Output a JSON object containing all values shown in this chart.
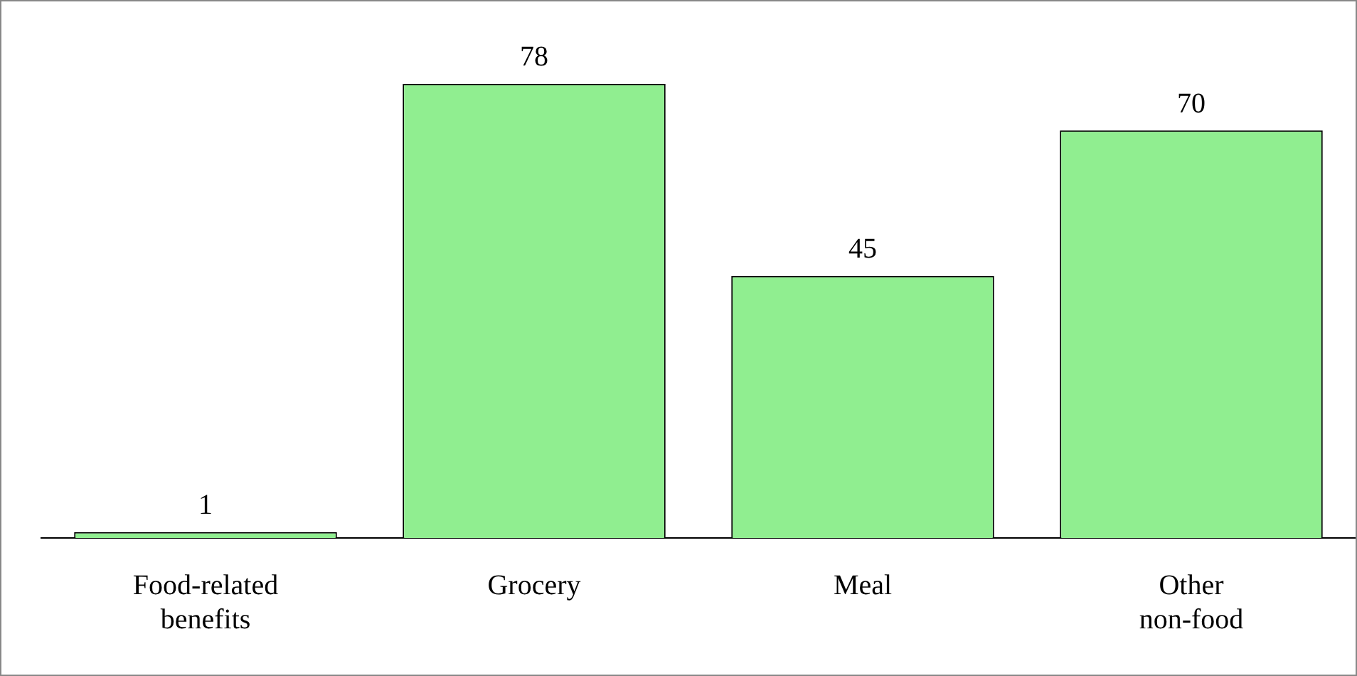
{
  "chart_data": {
    "type": "bar",
    "categories": [
      "Food-related benefits",
      "Grocery",
      "Meal",
      "Other non-food"
    ],
    "values": [
      1,
      78,
      45,
      70
    ],
    "color": "#90ee90",
    "data_labels": true,
    "grid": false,
    "legend": false
  }
}
